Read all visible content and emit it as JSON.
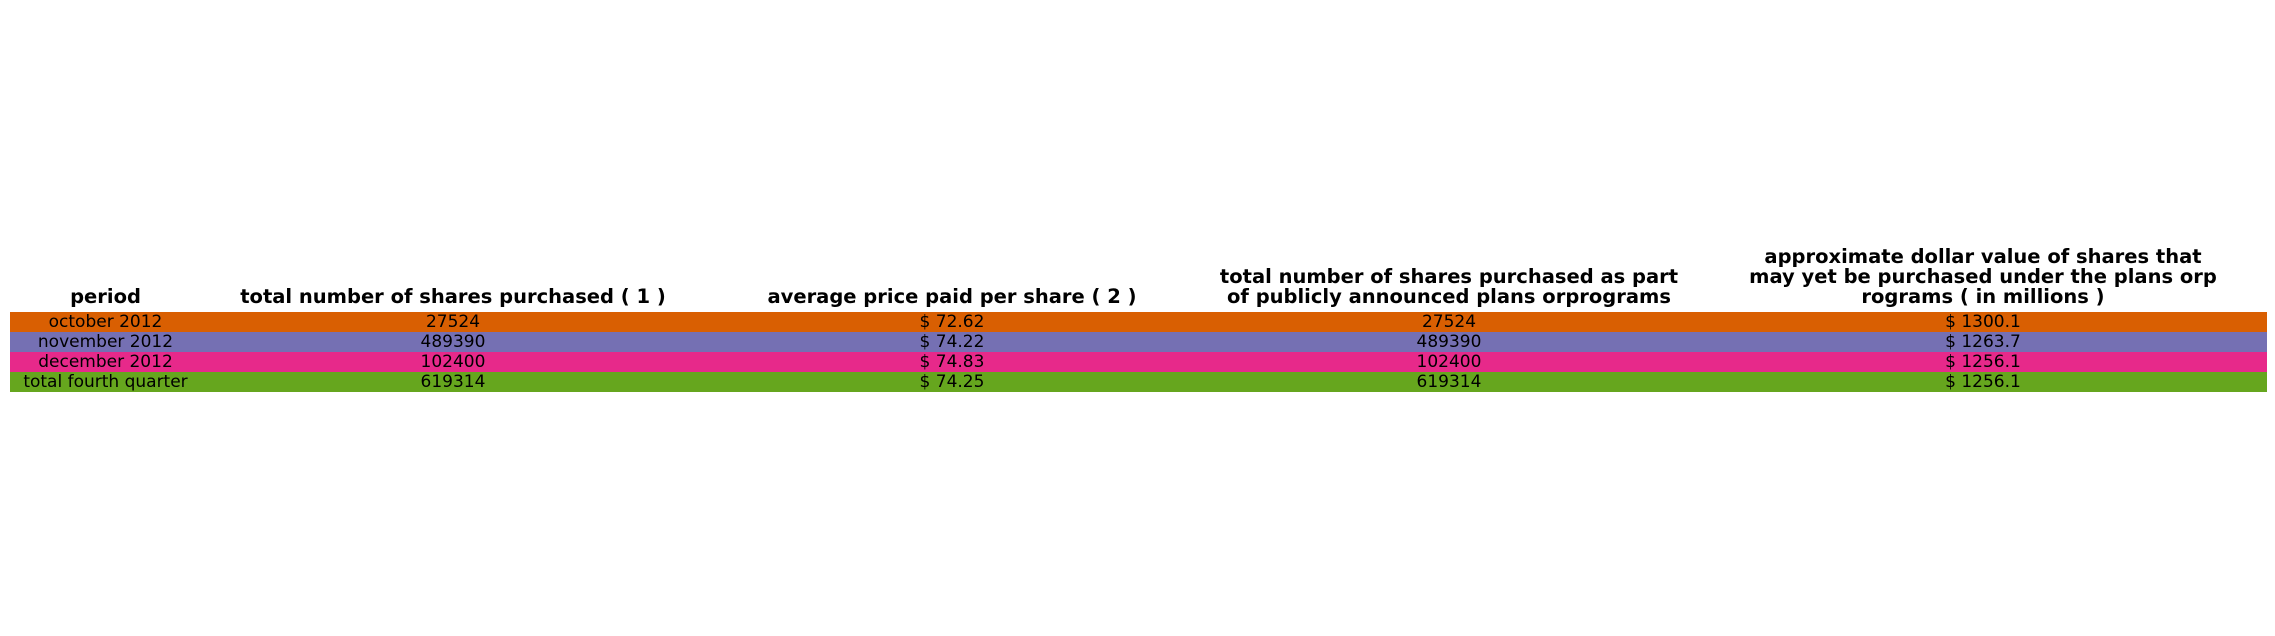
{
  "chart_data": {
    "type": "table",
    "columns": [
      [
        "period"
      ],
      [
        "total number of shares purchased ( 1 )"
      ],
      [
        "average price paid per share ( 2 )"
      ],
      [
        "total number of shares purchased as part",
        "of publicly announced plans orprograms"
      ],
      [
        "approximate dollar value of shares that",
        "may yet be purchased under the plans orp",
        "rograms ( in millions )"
      ]
    ],
    "rows": [
      {
        "color": "#d95f02",
        "cells": [
          "october 2012",
          "27524",
          "$ 72.62",
          "27524",
          "$ 1300.1"
        ]
      },
      {
        "color": "#7570b3",
        "cells": [
          "november 2012",
          "489390",
          "$ 74.22",
          "489390",
          "$ 1263.7"
        ]
      },
      {
        "color": "#e7298a",
        "cells": [
          "december 2012",
          "102400",
          "$ 74.83",
          "102400",
          "$ 1256.1"
        ]
      },
      {
        "color": "#66a61e",
        "cells": [
          "total fourth quarter",
          "619314",
          "$ 74.25",
          "619314",
          "$ 1256.1"
        ]
      }
    ]
  }
}
